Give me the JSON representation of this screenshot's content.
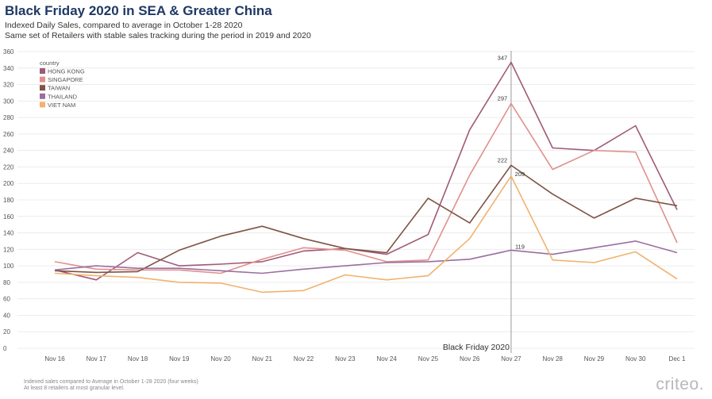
{
  "header": {
    "title": "Black Friday 2020 in SEA & Greater China",
    "subtitle1": "Indexed Daily Sales, compared to average in October 1-28 2020",
    "subtitle2": "Same set of Retailers with stable sales tracking during the period in 2019 and 2020"
  },
  "footnote": {
    "line1": "Indexed sales compared to Average in October 1-28 2020 (four weeks)",
    "line2": "At least 8 retailers at most granular level."
  },
  "logo": {
    "text": "criteo."
  },
  "chart_data": {
    "type": "line",
    "title": "Black Friday 2020 in SEA & Greater China",
    "xlabel": "",
    "ylabel": "",
    "ylim": [
      0,
      360
    ],
    "yticks": [
      0,
      20,
      40,
      60,
      80,
      100,
      120,
      140,
      160,
      180,
      200,
      220,
      240,
      260,
      280,
      300,
      320,
      340,
      360
    ],
    "categories": [
      "Nov 16",
      "Nov 17",
      "Nov 18",
      "Nov 19",
      "Nov 20",
      "Nov 21",
      "Nov 22",
      "Nov 23",
      "Nov 24",
      "Nov 25",
      "Nov 26",
      "Nov 27",
      "Nov 28",
      "Nov 29",
      "Nov 30",
      "Dec 1"
    ],
    "legend": {
      "title": "country",
      "placement": "top-left"
    },
    "grid": true,
    "series": [
      {
        "name": "HONG KONG",
        "color": "#a05a78",
        "values": [
          95,
          83,
          116,
          100,
          102,
          105,
          118,
          121,
          114,
          138,
          265,
          347,
          243,
          240,
          270,
          168
        ]
      },
      {
        "name": "SINGAPORE",
        "color": "#e0908c",
        "values": [
          105,
          96,
          95,
          95,
          91,
          108,
          122,
          119,
          105,
          107,
          210,
          297,
          217,
          240,
          238,
          128
        ]
      },
      {
        "name": "TAIWAN",
        "color": "#7d5443",
        "values": [
          94,
          92,
          93,
          119,
          136,
          148,
          133,
          121,
          116,
          182,
          152,
          222,
          187,
          158,
          182,
          173
        ]
      },
      {
        "name": "THAILAND",
        "color": "#9a6ea0",
        "values": [
          95,
          100,
          97,
          97,
          94,
          91,
          96,
          100,
          104,
          105,
          108,
          119,
          114,
          122,
          130,
          116
        ]
      },
      {
        "name": "VIET NAM",
        "color": "#f0b26e",
        "values": [
          91,
          88,
          86,
          80,
          79,
          68,
          70,
          89,
          83,
          88,
          133,
          209,
          107,
          104,
          117,
          84
        ]
      }
    ],
    "annotations": [
      {
        "series": "HONG KONG",
        "x": "Nov 27",
        "value": 347,
        "label": "347"
      },
      {
        "series": "SINGAPORE",
        "x": "Nov 27",
        "value": 297,
        "label": "297"
      },
      {
        "series": "TAIWAN",
        "x": "Nov 27",
        "value": 222,
        "label": "222"
      },
      {
        "series": "VIET NAM",
        "x": "Nov 27",
        "value": 209,
        "label": "209"
      },
      {
        "series": "THAILAND",
        "x": "Nov 27",
        "value": 119,
        "label": "119"
      }
    ],
    "reference_line": {
      "x": "Nov 27",
      "label": "Black Friday 2020"
    }
  }
}
